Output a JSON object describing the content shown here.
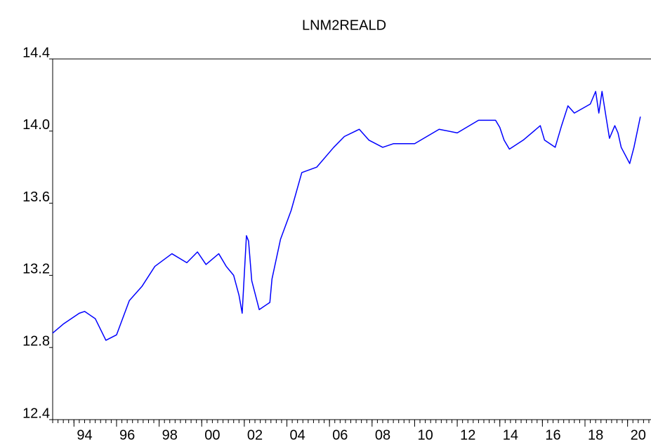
{
  "chart_data": {
    "type": "line",
    "title": "LNM2REALD",
    "x": [
      1993.0,
      1993.5,
      1994.25,
      1994.5,
      1995.0,
      1995.5,
      1996.0,
      1996.6,
      1997.2,
      1997.8,
      1998.6,
      1999.3,
      1999.8,
      2000.2,
      2000.8,
      2001.15,
      2001.5,
      2001.75,
      2001.9,
      2002.1,
      2002.2,
      2002.35,
      2002.7,
      2003.2,
      2003.3,
      2003.7,
      2004.2,
      2004.7,
      2005.4,
      2006.2,
      2006.7,
      2007.4,
      2007.85,
      2008.5,
      2009.0,
      2010.0,
      2011.15,
      2012.0,
      2013.0,
      2013.8,
      2014.0,
      2014.2,
      2014.45,
      2015.1,
      2015.9,
      2016.1,
      2016.6,
      2016.9,
      2017.2,
      2017.5,
      2018.25,
      2018.5,
      2018.65,
      2018.8,
      2019.0,
      2019.15,
      2019.4,
      2019.55,
      2019.7,
      2020.1,
      2020.3,
      2020.6
    ],
    "values": [
      12.88,
      12.93,
      12.99,
      13.0,
      12.96,
      12.84,
      12.87,
      13.06,
      13.14,
      13.25,
      13.32,
      13.27,
      13.33,
      13.26,
      13.32,
      13.25,
      13.2,
      13.09,
      12.99,
      13.42,
      13.39,
      13.17,
      13.01,
      13.05,
      13.18,
      13.4,
      13.56,
      13.77,
      13.8,
      13.91,
      13.97,
      14.01,
      13.95,
      13.91,
      13.93,
      13.93,
      14.01,
      13.99,
      14.06,
      14.06,
      14.02,
      13.95,
      13.9,
      13.95,
      14.03,
      13.95,
      13.91,
      14.03,
      14.14,
      14.1,
      14.15,
      14.22,
      14.1,
      14.22,
      14.07,
      13.96,
      14.03,
      13.99,
      13.91,
      13.82,
      13.91,
      14.08
    ],
    "color": "#0000ff",
    "xlim": [
      1993.0,
      2021.1
    ],
    "xticks": [
      {
        "value": 1994,
        "label": "94"
      },
      {
        "value": 1996,
        "label": "96"
      },
      {
        "value": 1998,
        "label": "98"
      },
      {
        "value": 2000,
        "label": "00"
      },
      {
        "value": 2002,
        "label": "02"
      },
      {
        "value": 2004,
        "label": "04"
      },
      {
        "value": 2006,
        "label": "06"
      },
      {
        "value": 2008,
        "label": "08"
      },
      {
        "value": 2010,
        "label": "10"
      },
      {
        "value": 2012,
        "label": "12"
      },
      {
        "value": 2014,
        "label": "14"
      },
      {
        "value": 2016,
        "label": "16"
      },
      {
        "value": 2018,
        "label": "18"
      },
      {
        "value": 2020,
        "label": "20"
      }
    ],
    "ylim": [
      12.4,
      14.4
    ],
    "yticks": [
      12.4,
      12.8,
      13.2,
      13.6,
      {
        "value": 14.0,
        "label": "14.0"
      },
      14.4
    ]
  }
}
